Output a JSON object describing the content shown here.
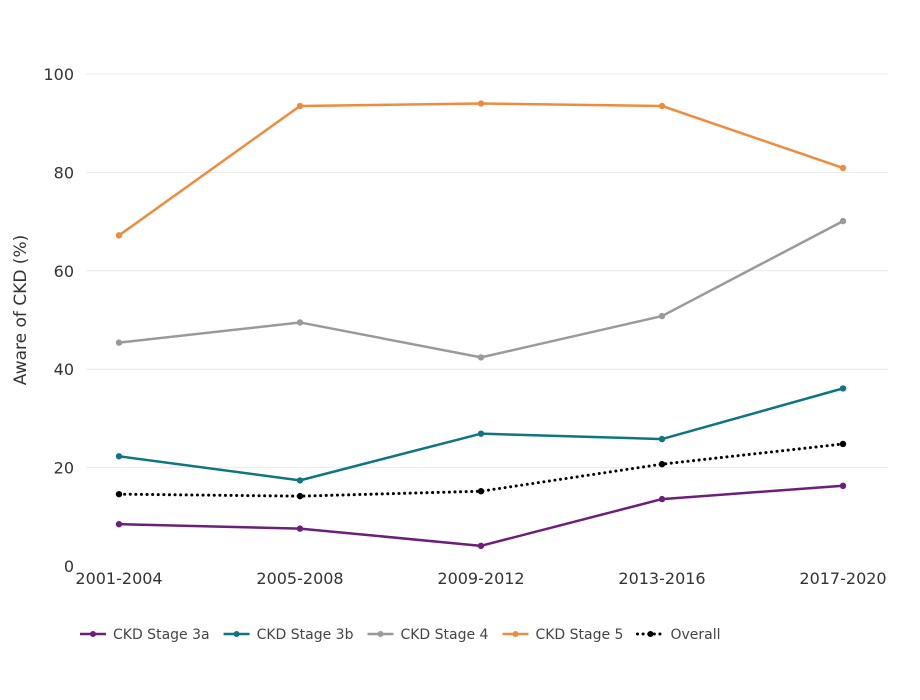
{
  "chart_data": {
    "type": "line",
    "title": "",
    "xlabel": "",
    "ylabel": "Aware of CKD (%)",
    "ylim": [
      0,
      100
    ],
    "yticks": [
      0,
      20,
      40,
      60,
      80,
      100
    ],
    "categories": [
      "2001-2004",
      "2005-2008",
      "2009-2012",
      "2013-2016",
      "2017-2020"
    ],
    "legend_position": "bottom",
    "series": [
      {
        "name": "CKD Stage 3a",
        "color": "#6b1f7a",
        "dash": "solid",
        "values": [
          8.5,
          7.6,
          4.1,
          13.6,
          16.3
        ]
      },
      {
        "name": "CKD Stage 3b",
        "color": "#0f7580",
        "dash": "solid",
        "values": [
          22.3,
          17.4,
          26.9,
          25.8,
          36.1
        ]
      },
      {
        "name": "CKD Stage 4",
        "color": "#9a9a9a",
        "dash": "solid",
        "values": [
          45.4,
          49.5,
          42.4,
          50.8,
          70.1
        ]
      },
      {
        "name": "CKD Stage 5",
        "color": "#ef8c3c",
        "dash": "solid",
        "values": [
          67.2,
          93.5,
          94.0,
          93.5,
          80.9
        ]
      },
      {
        "name": "Overall",
        "color": "#000000",
        "dash": "dotted",
        "values": [
          14.6,
          14.2,
          15.2,
          20.7,
          24.8
        ]
      }
    ]
  }
}
